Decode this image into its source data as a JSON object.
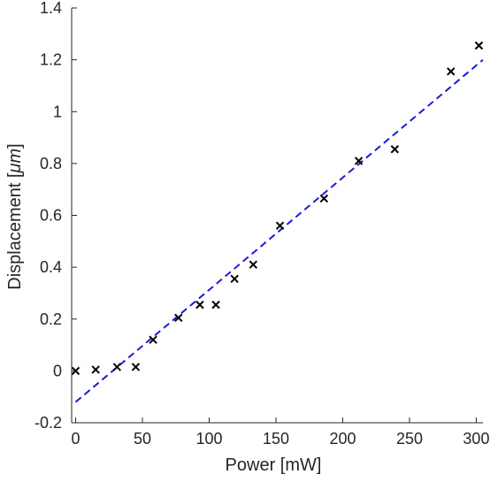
{
  "chart_data": {
    "type": "scatter",
    "title": "",
    "xlabel": "Power [mW]",
    "ylabel_prefix": "Displacement [",
    "ylabel_unit": "μm",
    "ylabel_suffix": "]",
    "xlim": [
      -3,
      305
    ],
    "ylim": [
      -0.2,
      1.4
    ],
    "xticks": [
      0,
      50,
      100,
      150,
      200,
      250,
      300
    ],
    "xtick_labels": [
      "0",
      "50",
      "100",
      "150",
      "200",
      "250",
      "300"
    ],
    "yticks": [
      -0.2,
      0,
      0.2,
      0.4,
      0.6,
      0.8,
      1,
      1.2,
      1.4
    ],
    "ytick_labels": [
      "-0.2",
      "0",
      "0.2",
      "0.4",
      "0.6",
      "0.8",
      "1",
      "1.2",
      "1.4"
    ],
    "grid": false,
    "series": [
      {
        "marker": "x",
        "color": "#000000",
        "x": [
          0,
          15,
          31,
          45,
          58,
          77,
          93,
          105,
          119,
          133,
          153,
          186,
          212,
          239,
          281,
          302
        ],
        "y": [
          0.0,
          0.005,
          0.015,
          0.015,
          0.12,
          0.205,
          0.255,
          0.255,
          0.355,
          0.41,
          0.56,
          0.665,
          0.81,
          0.855,
          1.155,
          1.255
        ]
      },
      {
        "style": "dashed-line",
        "color": "#1a1adc",
        "x": [
          0,
          305
        ],
        "y": [
          -0.12,
          1.2
        ]
      }
    ]
  }
}
